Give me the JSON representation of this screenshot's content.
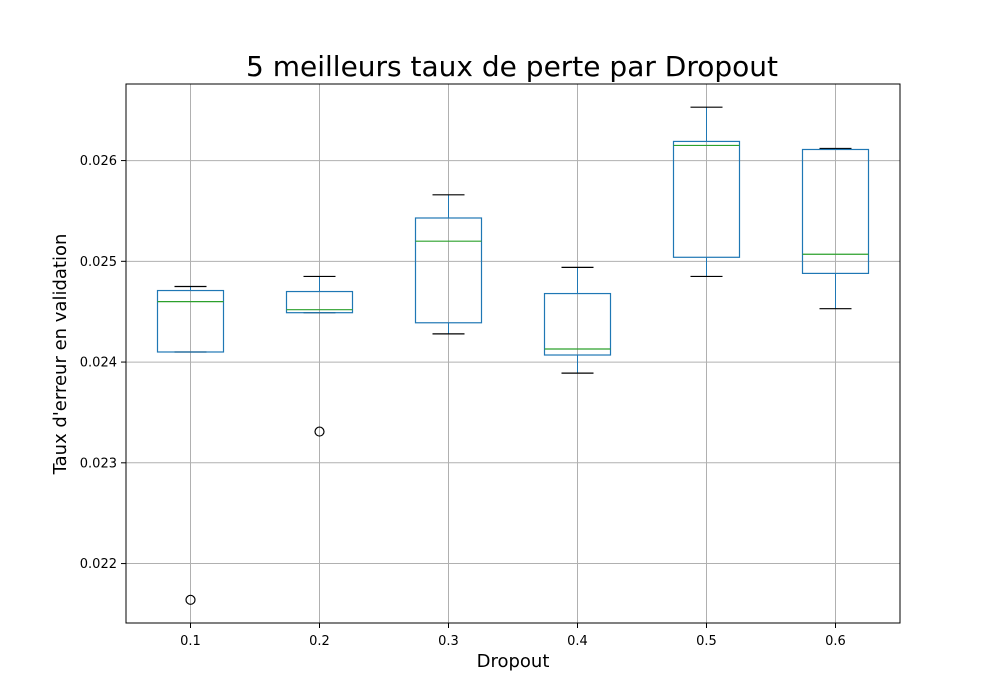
{
  "chart_data": {
    "type": "boxplot",
    "title": "5 meilleurs taux de perte par Dropout",
    "xlabel": "Dropout",
    "ylabel": "Taux d'erreur en validation",
    "categories": [
      "0.1",
      "0.2",
      "0.3",
      "0.4",
      "0.5",
      "0.6"
    ],
    "y_ticks": [
      "0.022",
      "0.023",
      "0.024",
      "0.025",
      "0.026"
    ],
    "ylim": [
      0.02141,
      0.02676
    ],
    "grid": true,
    "boxes": [
      {
        "category": "0.1",
        "whisker_low": 0.0241,
        "q1": 0.0241,
        "median": 0.0246,
        "q3": 0.02471,
        "whisker_high": 0.02475,
        "outliers": [
          0.02164
        ]
      },
      {
        "category": "0.2",
        "whisker_low": 0.02449,
        "q1": 0.02449,
        "median": 0.02452,
        "q3": 0.0247,
        "whisker_high": 0.02485,
        "outliers": [
          0.02331
        ]
      },
      {
        "category": "0.3",
        "whisker_low": 0.02428,
        "q1": 0.02439,
        "median": 0.0252,
        "q3": 0.02543,
        "whisker_high": 0.02566,
        "outliers": []
      },
      {
        "category": "0.4",
        "whisker_low": 0.02389,
        "q1": 0.02407,
        "median": 0.02413,
        "q3": 0.02468,
        "whisker_high": 0.02494,
        "outliers": []
      },
      {
        "category": "0.5",
        "whisker_low": 0.02485,
        "q1": 0.02504,
        "median": 0.02615,
        "q3": 0.02619,
        "whisker_high": 0.02653,
        "outliers": []
      },
      {
        "category": "0.6",
        "whisker_low": 0.02453,
        "q1": 0.02488,
        "median": 0.02507,
        "q3": 0.02611,
        "whisker_high": 0.02612,
        "outliers": []
      }
    ],
    "colors": {
      "box": "#1f77b4",
      "median": "#2ca02c",
      "whisker_cap": "#000000",
      "outlier": "#000000",
      "grid": "#b0b0b0",
      "frame": "#000000"
    }
  }
}
